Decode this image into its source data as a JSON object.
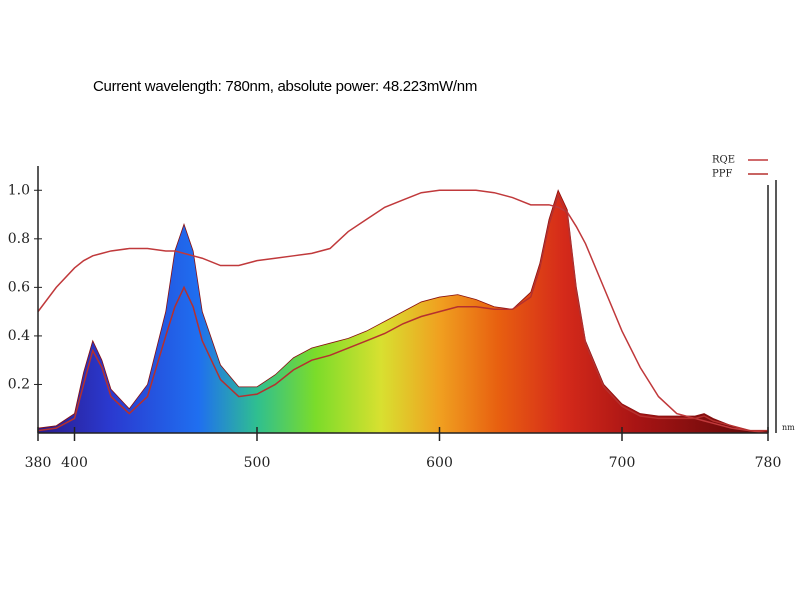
{
  "chart_data": {
    "type": "line",
    "title": "Current wavelength: 780nm, absolute power: 48.223mW/nm",
    "x_unit": "nm",
    "x": [
      380,
      390,
      400,
      405,
      410,
      415,
      420,
      430,
      440,
      450,
      455,
      460,
      465,
      470,
      480,
      490,
      500,
      510,
      520,
      530,
      540,
      550,
      560,
      570,
      580,
      590,
      600,
      610,
      620,
      630,
      640,
      650,
      655,
      660,
      665,
      670,
      675,
      680,
      690,
      700,
      710,
      720,
      730,
      740,
      745,
      750,
      760,
      770,
      780
    ],
    "spectrum": {
      "fill": "rainbow",
      "values": [
        0.02,
        0.03,
        0.08,
        0.25,
        0.38,
        0.3,
        0.18,
        0.1,
        0.2,
        0.5,
        0.75,
        0.86,
        0.75,
        0.5,
        0.28,
        0.19,
        0.19,
        0.24,
        0.31,
        0.35,
        0.37,
        0.39,
        0.42,
        0.46,
        0.5,
        0.54,
        0.56,
        0.57,
        0.55,
        0.52,
        0.51,
        0.58,
        0.7,
        0.88,
        1.0,
        0.92,
        0.6,
        0.38,
        0.2,
        0.12,
        0.08,
        0.07,
        0.07,
        0.07,
        0.08,
        0.06,
        0.03,
        0.01,
        0.01
      ]
    },
    "series": [
      {
        "name": "RQE",
        "color": "#c0393b",
        "values": [
          0.5,
          0.6,
          0.68,
          0.71,
          0.73,
          0.74,
          0.75,
          0.76,
          0.76,
          0.75,
          0.75,
          0.74,
          0.73,
          0.72,
          0.69,
          0.69,
          0.71,
          0.72,
          0.73,
          0.74,
          0.76,
          0.83,
          0.88,
          0.93,
          0.96,
          0.99,
          1.0,
          1.0,
          1.0,
          0.99,
          0.97,
          0.94,
          0.94,
          0.94,
          0.93,
          0.91,
          0.85,
          0.78,
          0.6,
          0.42,
          0.27,
          0.15,
          0.08,
          0.06,
          0.05,
          0.04,
          0.02,
          0.01,
          0
        ]
      },
      {
        "name": "PPF",
        "color": "#b5302e",
        "values": [
          0.01,
          0.02,
          0.06,
          0.2,
          0.34,
          0.27,
          0.15,
          0.08,
          0.15,
          0.4,
          0.52,
          0.6,
          0.52,
          0.38,
          0.22,
          0.15,
          0.16,
          0.2,
          0.26,
          0.3,
          0.32,
          0.35,
          0.38,
          0.41,
          0.45,
          0.48,
          0.5,
          0.52,
          0.52,
          0.51,
          0.51,
          0.56,
          0.68,
          0.86,
          0.98,
          0.9,
          0.58,
          0.37,
          0.19,
          0.11,
          0.07,
          0.06,
          0.06,
          0.06,
          0.07,
          0.05,
          0.03,
          0.01,
          0.01
        ]
      }
    ],
    "xlim": [
      380,
      780
    ],
    "xticks": [
      380,
      400,
      500,
      600,
      700,
      780
    ],
    "ylim": [
      0,
      1.1
    ],
    "yticks": [
      0.2,
      0.4,
      0.6,
      0.8,
      {
        "value": 1,
        "label": "1.0"
      }
    ],
    "legend": "top-right"
  }
}
